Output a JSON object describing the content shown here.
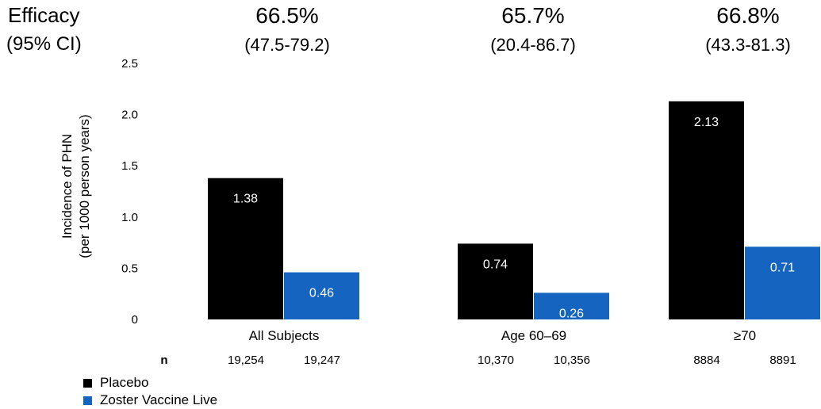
{
  "efficacy": {
    "title": "Efficacy",
    "subtitle": "(95% CI)",
    "groups": [
      {
        "value": "66.5%",
        "ci": "(47.5-79.2)"
      },
      {
        "value": "65.7%",
        "ci": "(20.4-86.7)"
      },
      {
        "value": "66.8%",
        "ci": "(43.3-81.3)"
      }
    ]
  },
  "colors": {
    "placebo": "#000000",
    "vaccine": "#1565c0",
    "label_on_dark": "#ffffff"
  },
  "chart_data": {
    "type": "bar",
    "ylabel": "Incidence of PHN",
    "ylabel2": "(per 1000 person years)",
    "ylim": [
      0,
      2.5
    ],
    "yticks": [
      {
        "value": 0,
        "label": "0"
      },
      {
        "value": 0.5,
        "label": "0.5"
      },
      {
        "value": 1.0,
        "label": "1.0"
      },
      {
        "value": 1.5,
        "label": "1.5"
      },
      {
        "value": 2.0,
        "label": "2.0"
      },
      {
        "value": 2.5,
        "label": "2.5"
      }
    ],
    "categories": [
      "All Subjects",
      "Age 60–69",
      "≥70"
    ],
    "series": [
      {
        "name": "Placebo",
        "values": [
          1.38,
          0.74,
          2.13
        ],
        "labels": [
          "1.38",
          "0.74",
          "2.13"
        ]
      },
      {
        "name": "Zoster Vaccine Live",
        "values": [
          0.46,
          0.26,
          0.71
        ],
        "labels": [
          "0.46",
          "0.26",
          "0.71"
        ]
      }
    ],
    "n_label": "n",
    "n_values": [
      [
        "19,254",
        "19,247"
      ],
      [
        "10,370",
        "10,356"
      ],
      [
        "8884",
        "8891"
      ]
    ],
    "grid": false,
    "legend_position": "bottom-left"
  }
}
